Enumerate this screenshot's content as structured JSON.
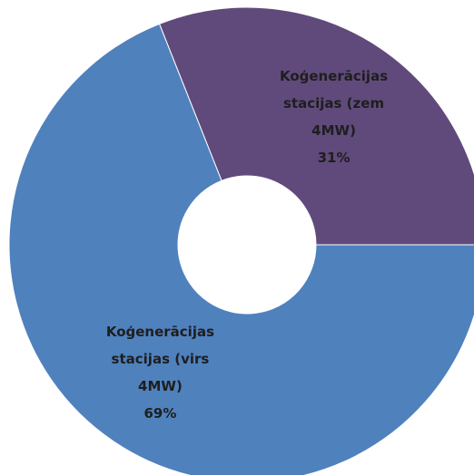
{
  "chart_data": {
    "type": "donut",
    "categories": [
      "Koģenerācijas stacijas (zem 4MW)",
      "Koģenerācijas stacijas (virs 4MW)"
    ],
    "values": [
      31,
      69
    ],
    "value_labels": [
      "31%",
      "69%"
    ],
    "colors": [
      "#604a7b",
      "#4f81bd"
    ]
  }
}
